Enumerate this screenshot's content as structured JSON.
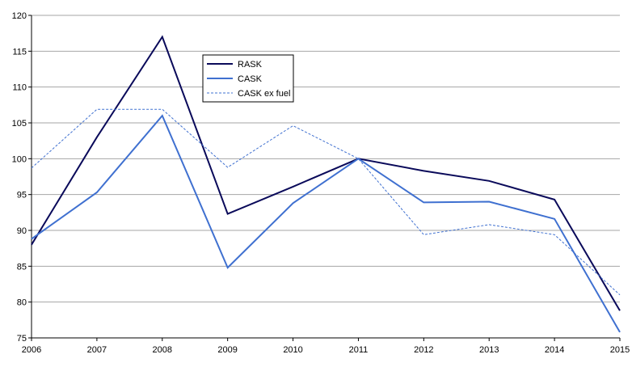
{
  "chart_data": {
    "type": "line",
    "title": "",
    "xlabel": "",
    "ylabel": "",
    "x": [
      "2006",
      "2007",
      "2008",
      "2009",
      "2010",
      "2011",
      "2012",
      "2013",
      "2014",
      "2015"
    ],
    "ylim": [
      75,
      120
    ],
    "yticks": [
      75,
      80,
      85,
      90,
      95,
      100,
      105,
      110,
      115,
      120
    ],
    "grid": "horizontal",
    "legend_position": "top-center",
    "series": [
      {
        "name": "RASK",
        "color": "#0a0a5a",
        "style": "solid",
        "values": [
          88.0,
          103.0,
          117.0,
          92.3,
          96.1,
          100.0,
          98.3,
          96.9,
          94.3,
          78.8
        ]
      },
      {
        "name": "CASK",
        "color": "#3f70d0",
        "style": "solid",
        "values": [
          88.8,
          95.3,
          106.0,
          84.8,
          93.8,
          100.0,
          93.9,
          94.0,
          91.6,
          75.8
        ]
      },
      {
        "name": "CASK ex fuel",
        "color": "#3f70d0",
        "style": "dashed",
        "values": [
          98.7,
          106.9,
          106.9,
          98.8,
          104.6,
          100.0,
          89.4,
          90.8,
          89.4,
          81.0
        ]
      }
    ]
  }
}
